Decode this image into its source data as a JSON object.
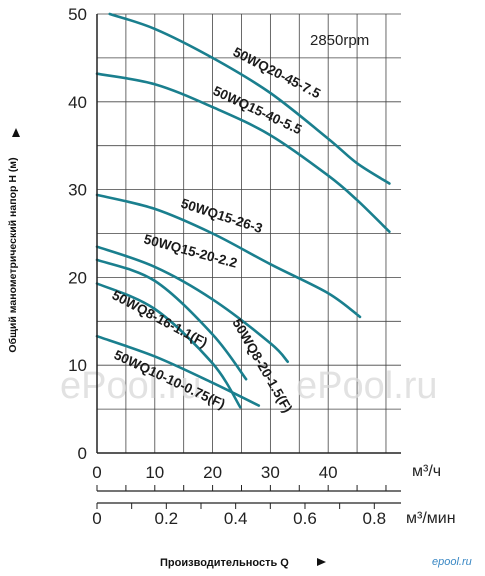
{
  "chart_data": {
    "type": "line",
    "title": "",
    "annotation": "2850rpm",
    "ylabel": "Общий манометрический напор H (м)",
    "xlabel": "Производительность Q",
    "x_units": "м³/ч",
    "x2_units": "м³/мин",
    "xlim": [
      0,
      52.6
    ],
    "ylim": [
      0,
      50
    ],
    "x2lim": [
      0,
      0.877
    ],
    "xticks": [
      "0",
      "10",
      "20",
      "30",
      "40"
    ],
    "x2ticks": [
      "0",
      "0.2",
      "0.4",
      "0.6",
      "0.8"
    ],
    "yticks": [
      "0",
      "10",
      "20",
      "30",
      "40",
      "50"
    ],
    "grid": true,
    "curve_color": "#1a7f8e",
    "series": [
      {
        "name": "50WQ20-45-7.5",
        "x": [
          2.2,
          10,
          20,
          30,
          40,
          45,
          50.6
        ],
        "y": [
          50,
          48.3,
          45,
          41,
          35.8,
          33,
          30.7
        ]
      },
      {
        "name": "50WQ15-40-5.5",
        "x": [
          0,
          10,
          20,
          30,
          40,
          45,
          50.6
        ],
        "y": [
          43.2,
          42,
          39.4,
          36.2,
          31.6,
          28.8,
          25.2
        ]
      },
      {
        "name": "50WQ15-26-3",
        "x": [
          0,
          10,
          20,
          30,
          40,
          45.5
        ],
        "y": [
          29.4,
          27.8,
          25,
          21.5,
          18.2,
          15.5
        ]
      },
      {
        "name": "50WQ15-20-2.2",
        "x": [
          0,
          10,
          20,
          30,
          33
        ],
        "y": [
          23.5,
          21.2,
          17.5,
          12.5,
          10.4
        ]
      },
      {
        "name": "50WQ8-20-1.5(F)",
        "x": [
          0,
          10,
          20,
          25.8
        ],
        "y": [
          22,
          19.6,
          13.5,
          8.4
        ]
      },
      {
        "name": "50WQ8-16-1.1(F)",
        "x": [
          0,
          10,
          20,
          24.8
        ],
        "y": [
          19.3,
          16.4,
          10.2,
          5.2
        ]
      },
      {
        "name": "50WQ10-10-0.75(F)",
        "x": [
          0,
          10,
          20,
          28
        ],
        "y": [
          13.3,
          11,
          8,
          5.4
        ]
      }
    ]
  },
  "watermark": {
    "left": "ePool.ru",
    "right": "ePool.ru"
  },
  "logo": "epool.ru"
}
